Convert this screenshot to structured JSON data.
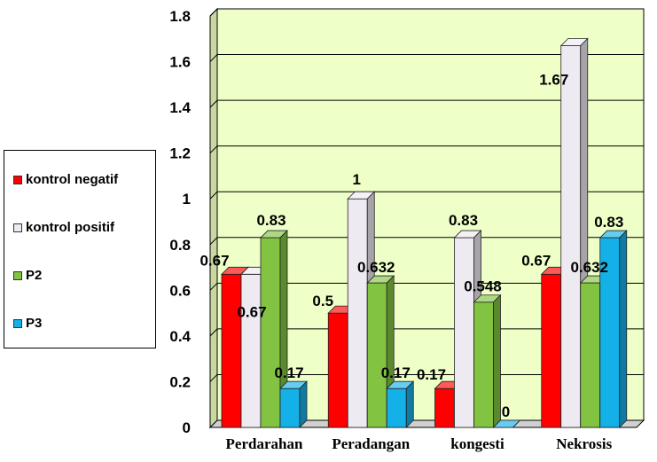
{
  "chart_data": {
    "type": "bar",
    "categories": [
      "Perdarahan",
      "Peradangan",
      "kongesti",
      "Nekrosis"
    ],
    "series": [
      {
        "name": "kontrol negatif",
        "color": "#ff0000",
        "values": [
          0.67,
          0.5,
          0.17,
          0.67
        ],
        "labels": [
          "0.67",
          "0.5",
          "0.17",
          "0.67"
        ]
      },
      {
        "name": "kontrol positif",
        "color": "#eeeaf2",
        "values": [
          0.67,
          1,
          0.83,
          1.67
        ],
        "labels": [
          "0.67",
          "1",
          "0.83",
          "1.67"
        ]
      },
      {
        "name": "P2",
        "color": "#82c341",
        "values": [
          0.83,
          0.632,
          0.548,
          0.632
        ],
        "labels": [
          "0.83",
          "0.632",
          "0.548",
          "0.632"
        ]
      },
      {
        "name": "P3",
        "color": "#14b0e8",
        "values": [
          0.17,
          0.17,
          0,
          0.83
        ],
        "labels": [
          "0.17",
          "0.17",
          "0",
          "0.83"
        ]
      }
    ],
    "ylim": [
      0,
      1.8
    ],
    "yticks": [
      "0",
      "0.2",
      "0.4",
      "0.6",
      "0.8",
      "1",
      "1.2",
      "1.4",
      "1.6",
      "1.8"
    ],
    "grid": true,
    "legend_position": "left",
    "three_d": true,
    "plot_background": "#eeffc8"
  }
}
